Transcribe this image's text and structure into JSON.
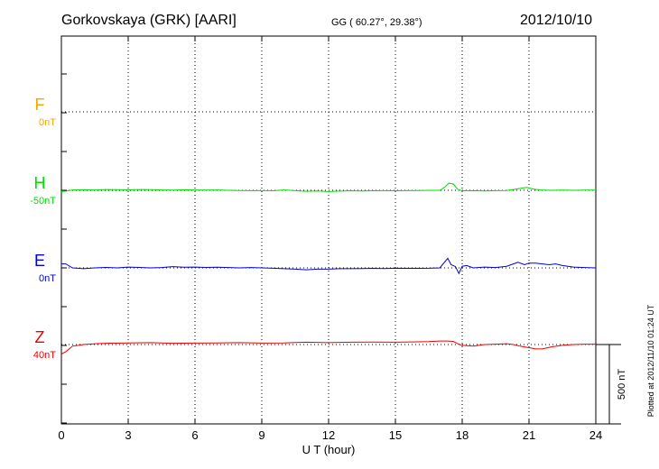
{
  "header": {
    "station": "Gorkovskaya (GRK)  [AARI]",
    "coords": "GG ( 60.27°,  29.38°)",
    "date": "2012/10/10"
  },
  "footer": {
    "plotted": "Plotted at 2012/11/10 01:24  UT"
  },
  "scale_bar": {
    "label": "500 nT",
    "value_nT": 500
  },
  "chart_data": {
    "type": "line",
    "xlabel": "U T (hour)",
    "xlim": [
      0,
      24
    ],
    "xticks": [
      0,
      3,
      6,
      9,
      12,
      15,
      18,
      21,
      24
    ],
    "grid": true,
    "channels": [
      {
        "name": "F",
        "baseline_label": "0nT",
        "color": "#f0a800"
      },
      {
        "name": "H",
        "baseline_label": "-50nT",
        "color": "#00dd00"
      },
      {
        "name": "E",
        "baseline_label": "0nT",
        "color": "#0000dd"
      },
      {
        "name": "Z",
        "baseline_label": "40nT",
        "color": "#ee0000"
      }
    ],
    "series": [
      {
        "name": "H",
        "x": [
          0,
          0.2,
          0.5,
          1,
          1.5,
          2,
          2.5,
          3,
          3.5,
          4,
          4.5,
          5,
          5.5,
          6,
          6.5,
          7,
          7.5,
          8,
          8.5,
          9,
          9.5,
          10,
          10.5,
          11,
          11.5,
          12,
          12.5,
          13,
          13.5,
          14,
          14.5,
          15,
          15.5,
          16,
          16.5,
          17,
          17.2,
          17.4,
          17.6,
          17.8,
          18,
          18.5,
          19,
          19.5,
          20,
          20.3,
          20.6,
          20.9,
          21.2,
          21.5,
          22,
          22.5,
          23,
          23.5,
          24
        ],
        "y": [
          -8,
          -5,
          2,
          3,
          2,
          5,
          4,
          3,
          5,
          4,
          2,
          1,
          3,
          2,
          1,
          2,
          0,
          -1,
          -2,
          -2,
          -3,
          2,
          -2,
          -6,
          -4,
          -8,
          -5,
          -3,
          -4,
          -3,
          -2,
          -3,
          -2,
          -1,
          0,
          0,
          18,
          45,
          40,
          5,
          -3,
          -2,
          -4,
          -2,
          -1,
          5,
          12,
          18,
          8,
          2,
          0,
          1,
          0,
          1,
          1
        ]
      },
      {
        "name": "E",
        "x": [
          0,
          0.2,
          0.5,
          1,
          1.5,
          2,
          2.5,
          3,
          3.5,
          4,
          4.5,
          5,
          5.5,
          6,
          6.5,
          7,
          7.5,
          8,
          8.5,
          9,
          9.5,
          10,
          10.5,
          11,
          11.5,
          12,
          12.5,
          13,
          13.5,
          14,
          14.5,
          15,
          15.5,
          16,
          16.5,
          17,
          17.2,
          17.35,
          17.5,
          17.7,
          17.85,
          18,
          18.2,
          18.5,
          19,
          19.5,
          20,
          20.3,
          20.5,
          20.8,
          21,
          21.3,
          21.6,
          21.9,
          22.2,
          22.5,
          23,
          23.5,
          24
        ],
        "y": [
          25,
          25,
          0,
          -5,
          0,
          3,
          0,
          5,
          3,
          0,
          2,
          8,
          4,
          5,
          3,
          4,
          2,
          0,
          2,
          0,
          -2,
          -5,
          -8,
          -12,
          -8,
          -8,
          -5,
          -5,
          -4,
          -3,
          -4,
          -2,
          -3,
          -3,
          -2,
          0,
          35,
          60,
          20,
          8,
          -35,
          10,
          15,
          0,
          5,
          2,
          10,
          25,
          35,
          20,
          30,
          30,
          25,
          20,
          25,
          15,
          5,
          2,
          0
        ]
      },
      {
        "name": "Z",
        "x": [
          0,
          0.2,
          0.5,
          1,
          1.5,
          2,
          3,
          4,
          5,
          6,
          7,
          8,
          9,
          10,
          10.5,
          11,
          12,
          13,
          14,
          15,
          16,
          16.5,
          17,
          17.3,
          17.6,
          17.8,
          18,
          18.5,
          19,
          19.5,
          20,
          20.3,
          20.6,
          21,
          21.3,
          21.6,
          22,
          22.5,
          23,
          23.5,
          24
        ],
        "y": [
          -60,
          -45,
          -10,
          0,
          5,
          8,
          10,
          12,
          8,
          9,
          10,
          12,
          9,
          10,
          13,
          15,
          12,
          15,
          16,
          15,
          17,
          19,
          22,
          22,
          20,
          5,
          -5,
          -10,
          0,
          2,
          5,
          0,
          -10,
          -20,
          -28,
          -28,
          -15,
          -5,
          0,
          2,
          2
        ]
      }
    ]
  }
}
